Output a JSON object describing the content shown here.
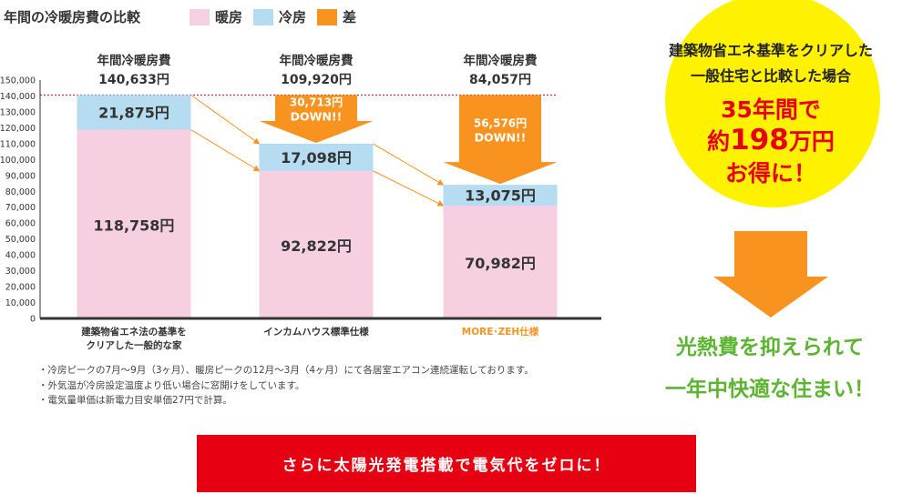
{
  "chart_data": {
    "type": "bar",
    "title": "年間の冷暖房費の比較",
    "legend": [
      {
        "name": "暖房",
        "color": "#f6d0e0"
      },
      {
        "name": "冷房",
        "color": "#b5dcf1"
      },
      {
        "name": "差",
        "color": "#f7931e"
      }
    ],
    "categories": [
      "建築物省エネ法の基準をクリアした一般的な家",
      "インカムハウス標準仕様",
      "MORE･ZEH仕様"
    ],
    "category_lines": [
      [
        "建築物省エネ法の基準を",
        "クリアした一般的な家"
      ],
      [
        "インカムハウス標準仕様"
      ],
      [
        "MORE･ZEH仕様"
      ]
    ],
    "series": [
      {
        "name": "暖房",
        "values": [
          118758,
          92822,
          70982
        ],
        "labels": [
          "118,758円",
          "92,822円",
          "70,982円"
        ]
      },
      {
        "name": "冷房",
        "values": [
          21875,
          17098,
          13075
        ],
        "labels": [
          "21,875円",
          "17,098円",
          "13,075円"
        ]
      }
    ],
    "totals_header": "年間冷暖房費",
    "totals": [
      140633,
      109920,
      84057
    ],
    "total_labels": [
      "140,633円",
      "109,920円",
      "84,057円"
    ],
    "differences": [
      null,
      30713,
      56576
    ],
    "difference_labels": [
      null,
      [
        "30,713円",
        "DOWN!!"
      ],
      [
        "56,576円",
        "DOWN!!"
      ]
    ],
    "ylim": [
      0,
      150000
    ],
    "yticks": [
      0,
      10000,
      20000,
      30000,
      40000,
      50000,
      60000,
      70000,
      80000,
      90000,
      100000,
      110000,
      120000,
      130000,
      140000,
      150000
    ],
    "ytick_labels": [
      "0",
      "10,000",
      "20,000",
      "30,000",
      "40,000",
      "50,000",
      "60,000",
      "70,000",
      "80,000",
      "90,000",
      "100,000",
      "110,000",
      "120,000",
      "130,000",
      "140,000",
      "150,000"
    ],
    "colors": {
      "heating": "#f6d0e0",
      "cooling": "#b5dcf1",
      "difference": "#f7931e",
      "accent_category": "#f7931e",
      "reference_line": "#c0002b"
    }
  },
  "notes": [
    "・冷房ピークの7月～9月（3ヶ月）、暖房ピークの12月～3月（4ヶ月）にて各居室エアコン連続運転しております。",
    "・外気温が冷房設定温度より低い場合に窓開けをしています。",
    "・電気量単価は新電力目安単価27円で計算。"
  ],
  "callout": {
    "line1": "建築物省エネ基準をクリアした",
    "line2": "一般住宅と比較した場合",
    "big1": "35年間で",
    "big2_prefix": "約",
    "big2_num": "198",
    "big2_suffix": "万円",
    "big3": "お得に！",
    "bg_color": "#fff200",
    "text_color": "#e60012"
  },
  "conclusion": {
    "line1": "光熱費を抑えられて",
    "line2": "一年中快適な住まい！",
    "color": "#5cb531"
  },
  "banner": {
    "text": "さらに太陽光発電搭載で電気代をゼロに！",
    "color": "#e60012"
  }
}
